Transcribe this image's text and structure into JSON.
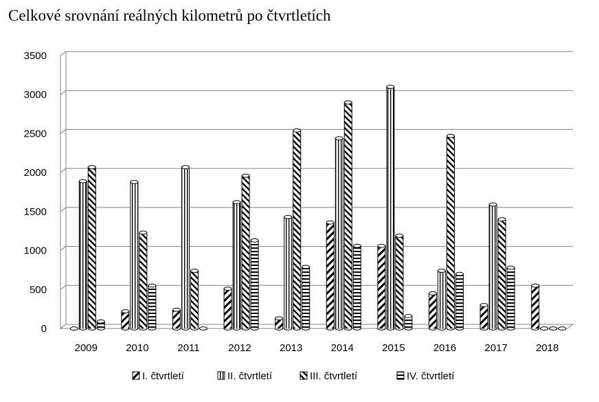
{
  "chart_data": {
    "type": "bar",
    "title": "Celkové srovnání reálných kilometrů po čtvrtletích",
    "xlabel": "",
    "ylabel": "",
    "categories": [
      "2009",
      "2010",
      "2011",
      "2012",
      "2013",
      "2014",
      "2015",
      "2016",
      "2017",
      "2018"
    ],
    "ylim": [
      0,
      3500
    ],
    "yticks": [
      0,
      500,
      1000,
      1500,
      2000,
      2500,
      3000,
      3500
    ],
    "grid": true,
    "legend_position": "bottom",
    "series": [
      {
        "name": "I. čtvrtletí",
        "pattern": "diagonal-up",
        "values": [
          0,
          220,
          240,
          510,
          130,
          1360,
          1060,
          450,
          300,
          550
        ]
      },
      {
        "name": "II. čtvrtletí",
        "pattern": "vertical",
        "values": [
          1890,
          1880,
          2070,
          1620,
          1430,
          2440,
          3100,
          740,
          1590,
          0
        ]
      },
      {
        "name": "III. čtvrtletí",
        "pattern": "diagonal-down",
        "values": [
          2070,
          1230,
          740,
          1960,
          2540,
          2900,
          1190,
          2470,
          1400,
          0
        ]
      },
      {
        "name": "IV. čtvrtletí",
        "pattern": "horizontal",
        "values": [
          90,
          550,
          0,
          1130,
          790,
          1060,
          160,
          700,
          780,
          0
        ]
      }
    ]
  }
}
